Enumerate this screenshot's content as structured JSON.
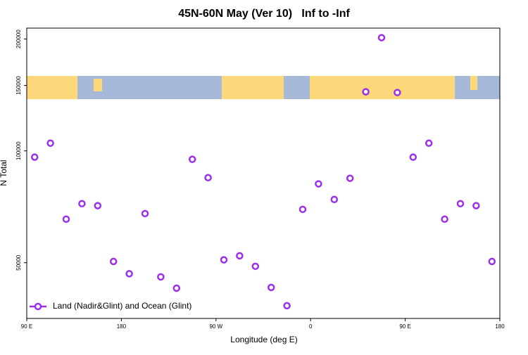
{
  "chart_data": {
    "type": "scatter",
    "title": "45N-60N May (Ver 10)   Inf to -Inf",
    "x_label": "Longitude (deg E)",
    "y_label": "N Total",
    "x": [
      97.5,
      112.5,
      127.5,
      142.5,
      157.5,
      172.5,
      187.5,
      202.5,
      217.5,
      232.5,
      247.5,
      262.5,
      277.5,
      292.5,
      307.5,
      322.5,
      337.5,
      352.5,
      367.5,
      382.5,
      397.5,
      412.5,
      427.5,
      442.5,
      457.5,
      472.5,
      487.5,
      502.5,
      517.5,
      532.5
    ],
    "series": [
      {
        "name": "Land (Nadir&Glint) and Ocean (Glint)",
        "color": "#9b30e8",
        "values": [
          96200,
          104900,
          65500,
          72100,
          71200,
          50400,
          46700,
          67800,
          45800,
          42700,
          94900,
          84700,
          50900,
          52200,
          48900,
          42900,
          38300,
          69600,
          81500,
          74000,
          84400,
          144200,
          201700,
          143600,
          96200,
          104900,
          65500,
          72100,
          71200,
          50400
        ]
      }
    ],
    "xlim": [
      90,
      540
    ],
    "xticks": [
      {
        "value": 90,
        "label": "90 E"
      },
      {
        "value": 180,
        "label": "180"
      },
      {
        "value": 270,
        "label": "90 W"
      },
      {
        "value": 360,
        "label": "0"
      },
      {
        "value": 450,
        "label": "90 E"
      },
      {
        "value": 540,
        "label": "180"
      }
    ],
    "ylim": [
      35400,
      214000
    ],
    "yticks": [
      50000,
      100000,
      150000,
      200000
    ],
    "log_y": true,
    "legend": "bottom-left"
  }
}
